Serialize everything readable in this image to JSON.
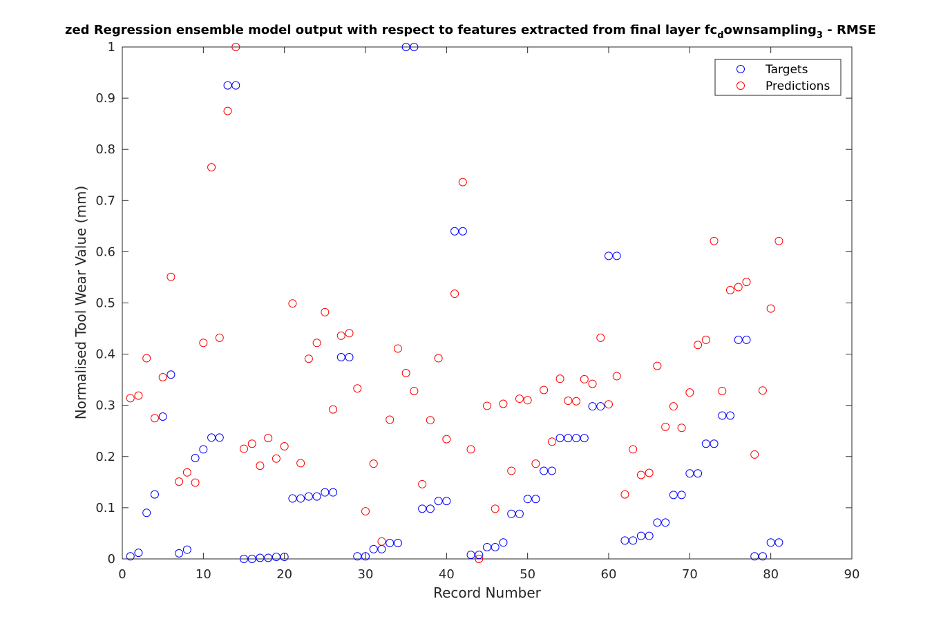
{
  "chart_data": {
    "type": "scatter",
    "title": {
      "prefix": "zed Regression ensemble model output with respect to features extracted from final layer fc",
      "sub1": "d",
      "mid": "ownsampling",
      "sub2": "3",
      "suffix": " - RMSE"
    },
    "xlabel": "Record Number",
    "ylabel": "Normalised Tool Wear Value (mm)",
    "xlim": [
      0,
      90
    ],
    "ylim": [
      0,
      1
    ],
    "xticks": [
      0,
      10,
      20,
      30,
      40,
      50,
      60,
      70,
      80,
      90
    ],
    "yticks": [
      0,
      0.1,
      0.2,
      0.3,
      0.4,
      0.5,
      0.6,
      0.7,
      0.8,
      0.9,
      1
    ],
    "xtick_labels": [
      "0",
      "10",
      "20",
      "30",
      "40",
      "50",
      "60",
      "70",
      "80",
      "90"
    ],
    "ytick_labels": [
      "0",
      "0.1",
      "0.2",
      "0.3",
      "0.4",
      "0.5",
      "0.6",
      "0.7",
      "0.8",
      "0.9",
      "1"
    ],
    "grid": false,
    "legend_position": "top-right",
    "x": [
      1,
      2,
      3,
      4,
      5,
      6,
      7,
      8,
      9,
      10,
      11,
      12,
      13,
      14,
      15,
      16,
      17,
      18,
      19,
      20,
      21,
      22,
      23,
      24,
      25,
      26,
      27,
      28,
      29,
      30,
      31,
      32,
      33,
      34,
      35,
      36,
      37,
      38,
      39,
      40,
      41,
      42,
      43,
      44,
      45,
      46,
      47,
      48,
      49,
      50,
      51,
      52,
      53,
      54,
      55,
      56,
      57,
      58,
      59,
      60,
      61,
      62,
      63,
      64,
      65,
      66,
      67,
      68,
      69,
      70,
      71,
      72,
      73,
      74,
      75,
      76,
      77,
      78,
      79,
      80,
      81
    ],
    "series": [
      {
        "name": "Targets",
        "color": "#0000ff",
        "values": [
          0.005,
          0.012,
          0.09,
          0.126,
          0.278,
          0.36,
          0.011,
          0.018,
          0.197,
          0.214,
          0.237,
          0.237,
          0.925,
          0.925,
          0.0,
          0.0,
          0.002,
          0.002,
          0.004,
          0.004,
          0.118,
          0.118,
          0.122,
          0.122,
          0.13,
          0.13,
          0.394,
          0.394,
          0.005,
          0.005,
          0.019,
          0.019,
          0.031,
          0.031,
          1.0,
          1.0,
          0.098,
          0.098,
          0.113,
          0.113,
          0.64,
          0.64,
          0.008,
          0.008,
          0.023,
          0.023,
          0.032,
          0.088,
          0.088,
          0.117,
          0.117,
          0.172,
          0.172,
          0.236,
          0.236,
          0.236,
          0.236,
          0.298,
          0.298,
          0.592,
          0.592,
          0.036,
          0.036,
          0.045,
          0.045,
          0.071,
          0.071,
          0.125,
          0.125,
          0.167,
          0.167,
          0.225,
          0.225,
          0.28,
          0.28,
          0.428,
          0.428,
          0.005,
          0.005,
          0.032,
          0.032
        ]
      },
      {
        "name": "Predictions",
        "color": "#ff0000",
        "values": [
          0.314,
          0.319,
          0.392,
          0.275,
          0.355,
          0.551,
          0.151,
          0.169,
          0.149,
          0.422,
          0.765,
          0.432,
          0.875,
          1.0,
          0.215,
          0.225,
          0.182,
          0.236,
          0.196,
          0.22,
          0.499,
          0.187,
          0.391,
          0.422,
          0.482,
          0.292,
          0.436,
          0.441,
          0.333,
          0.093,
          0.186,
          0.034,
          0.272,
          0.411,
          0.363,
          0.328,
          0.146,
          0.271,
          0.392,
          0.234,
          0.518,
          0.736,
          0.214,
          0.0,
          0.299,
          0.098,
          0.303,
          0.172,
          0.313,
          0.31,
          0.186,
          0.33,
          0.229,
          0.352,
          0.309,
          0.308,
          0.351,
          0.342,
          0.432,
          0.302,
          0.357,
          0.126,
          0.214,
          0.164,
          0.168,
          0.377,
          0.258,
          0.298,
          0.256,
          0.325,
          0.418,
          0.428,
          0.621,
          0.328,
          0.525,
          0.531,
          0.541,
          0.204,
          0.329,
          0.489,
          0.621
        ]
      }
    ]
  }
}
